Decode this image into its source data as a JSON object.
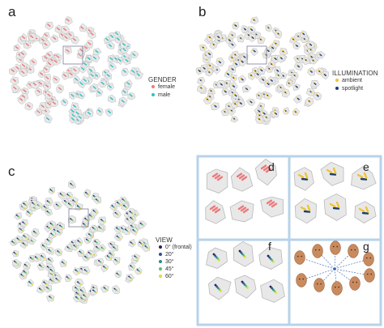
{
  "panels": {
    "a": {
      "letter": "a",
      "legend": {
        "title": "GENDER",
        "items": [
          {
            "label": "female",
            "color": "#ec7a7a"
          },
          {
            "label": "male",
            "color": "#2ec1c9"
          }
        ]
      }
    },
    "b": {
      "letter": "b",
      "legend": {
        "title": "ILLUMINATION",
        "items": [
          {
            "label": "ambient",
            "color": "#f2c230"
          },
          {
            "label": "spotlight",
            "color": "#1f3e6e"
          }
        ]
      }
    },
    "c": {
      "letter": "c",
      "legend": {
        "title": "VIEW",
        "items": [
          {
            "label": "0° (frontal)",
            "color": "#2b1d5c"
          },
          {
            "label": "20°",
            "color": "#2f4f8f"
          },
          {
            "label": "30°",
            "color": "#2a8a8c"
          },
          {
            "label": "45°",
            "color": "#5cbf6b"
          },
          {
            "label": "60°",
            "color": "#e6d93a"
          }
        ]
      }
    },
    "zooms": [
      "d",
      "e",
      "f",
      "g"
    ]
  },
  "colors": {
    "cell_fill": "#e8e8e8",
    "cell_stroke": "#b9b9b9",
    "zoom_frame": "#b7d3ea",
    "zoom_box": "#6b6b8a",
    "face_skin": "#c98a5e",
    "face_link": "#2d5fa8"
  }
}
